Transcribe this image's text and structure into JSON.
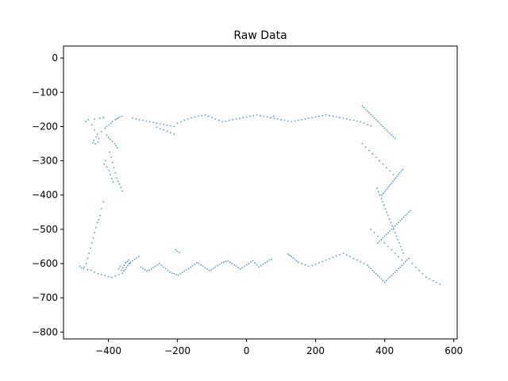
{
  "chart_data": {
    "type": "scatter",
    "title": "Raw Data",
    "xlabel": "",
    "ylabel": "",
    "xlim": [
      -530,
      610
    ],
    "ylim": [
      -820,
      35
    ],
    "xticks": [
      -400,
      -200,
      0,
      200,
      400,
      600
    ],
    "xtick_labels": [
      "−400",
      "−200",
      "0",
      "200",
      "400",
      "600"
    ],
    "yticks": [
      0,
      -100,
      -200,
      -300,
      -400,
      -500,
      -600,
      -700,
      -800
    ],
    "ytick_labels": [
      "0",
      "−100",
      "−200",
      "−300",
      "−400",
      "−500",
      "−600",
      "−700",
      "−800"
    ],
    "grid": false,
    "marker_color": "#1f77b4",
    "series": [
      {
        "name": "Raw Data",
        "x": [
          -465,
          -458,
          -440,
          -425,
          -415,
          -448,
          -440,
          -432,
          -428,
          -445,
          -438,
          -430,
          -442,
          -435,
          -420,
          -410,
          -405,
          -398,
          -392,
          -388,
          -380,
          -376,
          -372,
          -368,
          -362,
          -405,
          -400,
          -395,
          -388,
          -382,
          -378,
          -374,
          -396,
          -392,
          -388,
          -384,
          -380,
          -376,
          -372,
          -368,
          -364,
          -360,
          -408,
          -412,
          -404,
          -398,
          -394,
          -390,
          -386,
          -414,
          -420,
          -424,
          -428,
          -432,
          -436,
          -440,
          -444,
          -448,
          -452,
          -456,
          -460,
          -464,
          -470,
          -478,
          -483,
          -472,
          -460,
          -450,
          -440,
          -430,
          -420,
          -410,
          -400,
          -390,
          -380,
          -370,
          -360,
          -362,
          -358,
          -354,
          -350,
          -346,
          -342,
          -338,
          -366,
          -370,
          -356,
          -352,
          -348,
          -344,
          -340,
          -336,
          -330,
          -324,
          -318,
          -312,
          -306,
          -300,
          -294,
          -288,
          -282,
          -276,
          -270,
          -264,
          -258,
          -252,
          -246,
          -240,
          -234,
          -228,
          -222,
          -216,
          -210,
          -204,
          -198,
          -192,
          -186,
          -180,
          -174,
          -168,
          -162,
          -156,
          -150,
          -144,
          -138,
          -132,
          -126,
          -120,
          -114,
          -108,
          -102,
          -96,
          -90,
          -84,
          -78,
          -72,
          -66,
          -60,
          -54,
          -48,
          -42,
          -36,
          -30,
          -24,
          -18,
          -12,
          -6,
          0,
          6,
          12,
          18,
          24,
          30,
          36,
          42,
          48,
          54,
          60,
          66,
          72,
          78,
          -330,
          -320,
          -310,
          -300,
          -290,
          -280,
          -270,
          -260,
          -250,
          -240,
          -230,
          -220,
          -210,
          -200,
          -190,
          -180,
          -170,
          -160,
          -150,
          -140,
          -130,
          -120,
          -110,
          -100,
          -90,
          -80,
          -70,
          -60,
          -50,
          -40,
          -30,
          -20,
          -10,
          0,
          10,
          20,
          30,
          40,
          50,
          60,
          70,
          80,
          90,
          100,
          110,
          120,
          130,
          140,
          150,
          160,
          170,
          180,
          190,
          200,
          210,
          220,
          230,
          240,
          250,
          260,
          270,
          280,
          290,
          300,
          310,
          320,
          330,
          340,
          350,
          360,
          -260,
          -250,
          -240,
          -230,
          -220,
          -210,
          -205,
          -200,
          -195,
          120,
          125,
          130,
          135,
          140,
          145,
          150,
          160,
          170,
          180,
          190,
          200,
          210,
          220,
          230,
          240,
          250,
          260,
          270,
          280,
          290,
          300,
          310,
          320,
          330,
          340,
          350,
          355,
          360,
          365,
          370,
          375,
          380,
          385,
          390,
          395,
          400,
          405,
          410,
          415,
          420,
          425,
          430,
          435,
          440,
          445,
          450,
          455,
          460,
          465,
          470,
          480,
          490,
          500,
          510,
          520,
          530,
          540,
          550,
          560,
          335,
          340,
          345,
          350,
          355,
          360,
          365,
          370,
          375,
          380,
          385,
          390,
          395,
          400,
          405,
          410,
          415,
          420,
          425,
          430,
          335,
          345,
          355,
          365,
          375,
          385,
          395,
          405,
          415,
          425,
          360,
          370,
          380,
          390,
          400,
          410,
          420,
          430,
          440,
          450,
          378,
          382,
          386,
          390,
          394,
          398,
          402,
          406,
          410,
          414,
          418,
          422,
          426,
          430,
          434,
          438,
          442,
          446,
          450,
          454,
          392,
          396,
          400,
          404,
          408,
          412,
          416,
          420,
          424,
          428,
          432,
          436,
          440,
          444,
          448,
          452,
          380,
          385,
          390,
          395,
          400,
          405,
          410,
          415,
          420,
          425,
          430,
          435,
          440,
          445,
          450,
          455,
          460,
          465,
          470,
          475
        ],
        "y": [
          -185,
          -180,
          -178,
          -176,
          -174,
          -195,
          -210,
          -222,
          -235,
          -248,
          -250,
          -245,
          -240,
          -230,
          -215,
          -205,
          -200,
          -195,
          -190,
          -185,
          -180,
          -178,
          -175,
          -172,
          -170,
          -225,
          -232,
          -238,
          -244,
          -250,
          -256,
          -262,
          -275,
          -290,
          -305,
          -320,
          -335,
          -350,
          -360,
          -368,
          -378,
          -388,
          -300,
          -310,
          -318,
          -328,
          -340,
          -352,
          -362,
          -420,
          -440,
          -460,
          -472,
          -480,
          -495,
          -510,
          -525,
          -540,
          -555,
          -570,
          -585,
          -600,
          -610,
          -612,
          -608,
          -615,
          -618,
          -620,
          -625,
          -630,
          -632,
          -635,
          -638,
          -640,
          -636,
          -632,
          -628,
          -620,
          -612,
          -605,
          -598,
          -594,
          -590,
          -600,
          -608,
          -615,
          -622,
          -618,
          -612,
          -606,
          -600,
          -596,
          -592,
          -588,
          -584,
          -580,
          -610,
          -614,
          -618,
          -622,
          -620,
          -616,
          -612,
          -608,
          -604,
          -600,
          -605,
          -610,
          -615,
          -620,
          -625,
          -628,
          -630,
          -632,
          -634,
          -630,
          -626,
          -622,
          -618,
          -614,
          -610,
          -606,
          -602,
          -598,
          -600,
          -604,
          -608,
          -612,
          -616,
          -620,
          -618,
          -614,
          -610,
          -606,
          -602,
          -598,
          -596,
          -594,
          -592,
          -596,
          -600,
          -604,
          -608,
          -612,
          -616,
          -612,
          -608,
          -604,
          -600,
          -596,
          -592,
          -598,
          -604,
          -610,
          -606,
          -602,
          -598,
          -594,
          -590,
          -588,
          -170,
          -175,
          -178,
          -180,
          -182,
          -184,
          -186,
          -188,
          -190,
          -192,
          -194,
          -196,
          -198,
          -200,
          -190,
          -186,
          -182,
          -178,
          -174,
          -172,
          -170,
          -168,
          -166,
          -170,
          -174,
          -178,
          -182,
          -186,
          -184,
          -182,
          -180,
          -178,
          -176,
          -174,
          -172,
          -170,
          -168,
          -166,
          -168,
          -170,
          -172,
          -174,
          -176,
          -178,
          -180,
          -182,
          -184,
          -186,
          -184,
          -182,
          -180,
          -178,
          -176,
          -174,
          -172,
          -170,
          -168,
          -166,
          -168,
          -170,
          -172,
          -174,
          -176,
          -178,
          -180,
          -182,
          -184,
          -186,
          -190,
          -194,
          -198,
          -202,
          -206,
          -210,
          -214,
          -218,
          -222,
          -560,
          -564,
          -568,
          -572,
          -576,
          -580,
          -584,
          -588,
          -592,
          -596,
          -600,
          -604,
          -608,
          -606,
          -602,
          -598,
          -594,
          -590,
          -586,
          -582,
          -578,
          -574,
          -570,
          -575,
          -580,
          -585,
          -590,
          -595,
          -600,
          -605,
          -610,
          -615,
          -620,
          -625,
          -630,
          -635,
          -640,
          -645,
          -650,
          -655,
          -650,
          -645,
          -640,
          -635,
          -630,
          -625,
          -620,
          -615,
          -610,
          -605,
          -600,
          -595,
          -590,
          -585,
          -600,
          -610,
          -620,
          -630,
          -640,
          -645,
          -650,
          -655,
          -660,
          -140,
          -145,
          -150,
          -155,
          -160,
          -165,
          -170,
          -175,
          -180,
          -185,
          -190,
          -195,
          -200,
          -205,
          -210,
          -215,
          -220,
          -225,
          -230,
          -235,
          -250,
          -260,
          -270,
          -280,
          -290,
          -300,
          -310,
          -320,
          -330,
          -340,
          -500,
          -510,
          -520,
          -530,
          -540,
          -550,
          -560,
          -570,
          -580,
          -590,
          -380,
          -390,
          -400,
          -410,
          -420,
          -430,
          -440,
          -450,
          -460,
          -470,
          -480,
          -490,
          -500,
          -510,
          -520,
          -530,
          -540,
          -550,
          -560,
          -570,
          -400,
          -395,
          -390,
          -385,
          -380,
          -375,
          -370,
          -365,
          -360,
          -355,
          -350,
          -345,
          -340,
          -335,
          -330,
          -325,
          -540,
          -535,
          -530,
          -525,
          -520,
          -515,
          -510,
          -505,
          -500,
          -495,
          -490,
          -485,
          -480,
          -475,
          -470,
          -465,
          -460,
          -455,
          -450,
          -445
        ]
      }
    ]
  }
}
